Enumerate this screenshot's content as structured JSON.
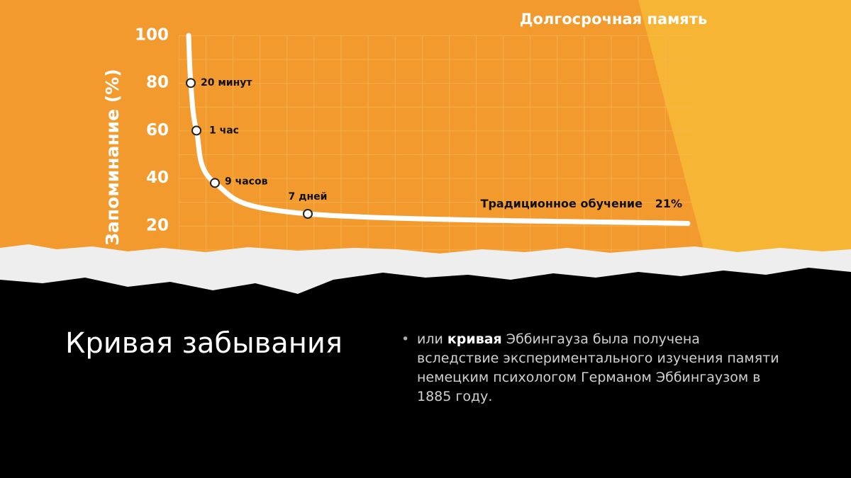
{
  "chart_data": {
    "type": "line",
    "ylabel": "Запоминание (%)",
    "annotation": "Долгосрочная память",
    "end_label": "Традиционное обучение",
    "categories": [
      null,
      "20 минут",
      "1 час",
      "9 часов",
      "7 дней",
      null
    ],
    "series": [
      {
        "color": "#ffffff",
        "values": [
          100,
          80,
          60,
          38,
          25,
          21
        ],
        "value_labels": [
          null,
          null,
          null,
          null,
          null,
          "21%"
        ]
      }
    ],
    "ylim": [
      0,
      100
    ],
    "yticks": [
      20,
      40,
      60,
      80,
      100
    ]
  },
  "slide": {
    "title": "Кривая забывания",
    "bullet": {
      "before": "или",
      "bold": "кривая",
      "after": "Эббингауза была получена вследствие экспериментального изучения памяти немецким психологом Германом Эббингаузом в 1885 году."
    }
  }
}
